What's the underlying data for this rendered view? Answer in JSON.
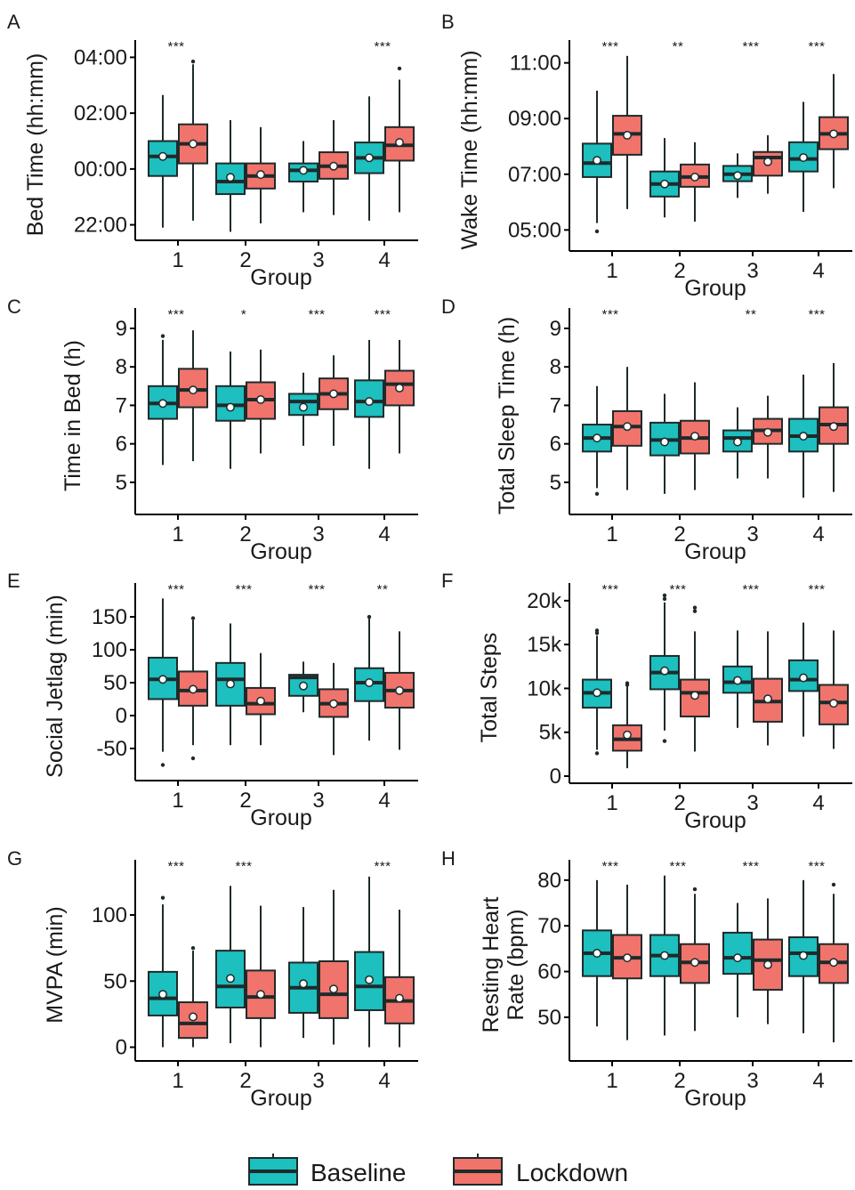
{
  "legend": {
    "items": [
      {
        "label": "Baseline",
        "color": "#1dbfbf"
      },
      {
        "label": "Lockdown",
        "color": "#f0746c"
      }
    ]
  },
  "colors": {
    "baseline": "#1dbfbf",
    "lockdown": "#f0746c",
    "median": "#1f2a2a"
  },
  "chart_data": [
    {
      "type": "box",
      "letter": "A",
      "xlabel": "Group",
      "ylabel": "Bed Time (hh:mm)",
      "categories": [
        "1",
        "2",
        "3",
        "4"
      ],
      "series_names": [
        "Baseline",
        "Lockdown"
      ],
      "ylim": [
        -2.3,
        4.3
      ],
      "yticks": [
        {
          "v": -2,
          "label": "22:00"
        },
        {
          "v": 0,
          "label": "00:00"
        },
        {
          "v": 2,
          "label": "02:00"
        },
        {
          "v": 4,
          "label": "04:00"
        }
      ],
      "significance": [
        "***",
        "",
        "",
        "***"
      ],
      "boxes": [
        [
          {
            "min": -2.1,
            "q1": -0.25,
            "med": 0.45,
            "q3": 1.0,
            "max": 2.65,
            "mean": 0.45,
            "out": []
          },
          {
            "min": -1.85,
            "q1": 0.2,
            "med": 0.9,
            "q3": 1.6,
            "max": 3.75,
            "mean": 0.9,
            "out": [
              3.85
            ]
          }
        ],
        [
          {
            "min": -2.25,
            "q1": -0.9,
            "med": -0.45,
            "q3": 0.2,
            "max": 1.75,
            "mean": -0.3,
            "out": []
          },
          {
            "min": -1.95,
            "q1": -0.7,
            "med": -0.25,
            "q3": 0.2,
            "max": 1.5,
            "mean": -0.2,
            "out": []
          }
        ],
        [
          {
            "min": -1.55,
            "q1": -0.45,
            "med": -0.05,
            "q3": 0.2,
            "max": 1.0,
            "mean": -0.05,
            "out": []
          },
          {
            "min": -1.65,
            "q1": -0.35,
            "med": 0.1,
            "q3": 0.6,
            "max": 1.75,
            "mean": 0.1,
            "out": []
          }
        ],
        [
          {
            "min": -1.85,
            "q1": -0.15,
            "med": 0.4,
            "q3": 0.95,
            "max": 2.6,
            "mean": 0.4,
            "out": []
          },
          {
            "min": -1.55,
            "q1": 0.3,
            "med": 0.85,
            "q3": 1.5,
            "max": 3.2,
            "mean": 0.95,
            "out": [
              3.6
            ]
          }
        ]
      ]
    },
    {
      "type": "box",
      "letter": "B",
      "xlabel": "Group",
      "ylabel": "Wake Time (hh:mm)",
      "categories": [
        "1",
        "2",
        "3",
        "4"
      ],
      "series_names": [
        "Baseline",
        "Lockdown"
      ],
      "ylim": [
        4.5,
        11.5
      ],
      "yticks": [
        {
          "v": 5,
          "label": "05:00"
        },
        {
          "v": 7,
          "label": "07:00"
        },
        {
          "v": 9,
          "label": "09:00"
        },
        {
          "v": 11,
          "label": "11:00"
        }
      ],
      "significance": [
        "***",
        "**",
        "***",
        "***"
      ],
      "boxes": [
        [
          {
            "min": 5.25,
            "q1": 6.9,
            "med": 7.4,
            "q3": 8.1,
            "max": 10.0,
            "mean": 7.5,
            "out": [
              4.95
            ]
          },
          {
            "min": 5.75,
            "q1": 7.7,
            "med": 8.45,
            "q3": 9.1,
            "max": 11.25,
            "mean": 8.4,
            "out": []
          }
        ],
        [
          {
            "min": 5.45,
            "q1": 6.2,
            "med": 6.65,
            "q3": 7.1,
            "max": 8.3,
            "mean": 6.65,
            "out": []
          },
          {
            "min": 5.3,
            "q1": 6.55,
            "med": 6.9,
            "q3": 7.35,
            "max": 8.15,
            "mean": 6.9,
            "out": []
          }
        ],
        [
          {
            "min": 6.15,
            "q1": 6.75,
            "med": 7.0,
            "q3": 7.3,
            "max": 7.75,
            "mean": 6.95,
            "out": []
          },
          {
            "min": 6.3,
            "q1": 6.95,
            "med": 7.6,
            "q3": 7.8,
            "max": 8.4,
            "mean": 7.45,
            "out": []
          }
        ],
        [
          {
            "min": 5.65,
            "q1": 7.1,
            "med": 7.55,
            "q3": 8.15,
            "max": 9.6,
            "mean": 7.6,
            "out": []
          },
          {
            "min": 6.5,
            "q1": 7.9,
            "med": 8.45,
            "q3": 9.05,
            "max": 10.6,
            "mean": 8.45,
            "out": []
          }
        ]
      ]
    },
    {
      "type": "box",
      "letter": "C",
      "xlabel": "Group",
      "ylabel": "Time in Bed (h)",
      "categories": [
        "1",
        "2",
        "3",
        "4"
      ],
      "series_names": [
        "Baseline",
        "Lockdown"
      ],
      "ylim": [
        4.35,
        9.3
      ],
      "yticks": [
        {
          "v": 5,
          "label": "5"
        },
        {
          "v": 6,
          "label": "6"
        },
        {
          "v": 7,
          "label": "7"
        },
        {
          "v": 8,
          "label": "8"
        },
        {
          "v": 9,
          "label": "9"
        }
      ],
      "significance": [
        "***",
        "*",
        "***",
        "***"
      ],
      "boxes": [
        [
          {
            "min": 5.45,
            "q1": 6.65,
            "med": 7.05,
            "q3": 7.5,
            "max": 8.7,
            "mean": 7.05,
            "out": [
              8.8
            ]
          },
          {
            "min": 5.55,
            "q1": 6.95,
            "med": 7.4,
            "q3": 7.95,
            "max": 8.95,
            "mean": 7.4,
            "out": []
          }
        ],
        [
          {
            "min": 5.35,
            "q1": 6.6,
            "med": 7.0,
            "q3": 7.5,
            "max": 8.4,
            "mean": 6.95,
            "out": []
          },
          {
            "min": 5.75,
            "q1": 6.65,
            "med": 7.15,
            "q3": 7.6,
            "max": 8.45,
            "mean": 7.15,
            "out": []
          }
        ],
        [
          {
            "min": 5.95,
            "q1": 6.75,
            "med": 7.1,
            "q3": 7.3,
            "max": 7.85,
            "mean": 6.95,
            "out": []
          },
          {
            "min": 5.95,
            "q1": 6.9,
            "med": 7.3,
            "q3": 7.7,
            "max": 8.3,
            "mean": 7.3,
            "out": []
          }
        ],
        [
          {
            "min": 5.35,
            "q1": 6.7,
            "med": 7.1,
            "q3": 7.65,
            "max": 8.7,
            "mean": 7.1,
            "out": []
          },
          {
            "min": 5.75,
            "q1": 7.0,
            "med": 7.55,
            "q3": 7.9,
            "max": 8.7,
            "mean": 7.45,
            "out": []
          }
        ]
      ]
    },
    {
      "type": "box",
      "letter": "D",
      "xlabel": "Group",
      "ylabel": "Total Sleep Time (h)",
      "categories": [
        "1",
        "2",
        "3",
        "4"
      ],
      "series_names": [
        "Baseline",
        "Lockdown"
      ],
      "ylim": [
        4.35,
        9.3
      ],
      "yticks": [
        {
          "v": 5,
          "label": "5"
        },
        {
          "v": 6,
          "label": "6"
        },
        {
          "v": 7,
          "label": "7"
        },
        {
          "v": 8,
          "label": "8"
        },
        {
          "v": 9,
          "label": "9"
        }
      ],
      "significance": [
        "***",
        "",
        "**",
        "***"
      ],
      "boxes": [
        [
          {
            "min": 4.85,
            "q1": 5.8,
            "med": 6.15,
            "q3": 6.5,
            "max": 7.5,
            "mean": 6.15,
            "out": [
              4.7
            ]
          },
          {
            "min": 4.8,
            "q1": 5.95,
            "med": 6.45,
            "q3": 6.85,
            "max": 8.0,
            "mean": 6.45,
            "out": []
          }
        ],
        [
          {
            "min": 4.7,
            "q1": 5.7,
            "med": 6.1,
            "q3": 6.55,
            "max": 7.3,
            "mean": 6.05,
            "out": []
          },
          {
            "min": 4.8,
            "q1": 5.75,
            "med": 6.15,
            "q3": 6.6,
            "max": 7.6,
            "mean": 6.2,
            "out": []
          }
        ],
        [
          {
            "min": 5.1,
            "q1": 5.8,
            "med": 6.15,
            "q3": 6.35,
            "max": 6.95,
            "mean": 6.05,
            "out": []
          },
          {
            "min": 5.1,
            "q1": 6.0,
            "med": 6.35,
            "q3": 6.65,
            "max": 7.25,
            "mean": 6.3,
            "out": []
          }
        ],
        [
          {
            "min": 4.6,
            "q1": 5.8,
            "med": 6.2,
            "q3": 6.65,
            "max": 7.8,
            "mean": 6.2,
            "out": []
          },
          {
            "min": 4.75,
            "q1": 6.0,
            "med": 6.5,
            "q3": 6.95,
            "max": 8.1,
            "mean": 6.45,
            "out": []
          }
        ]
      ]
    },
    {
      "type": "box",
      "letter": "E",
      "xlabel": "Group",
      "ylabel": "Social Jetlag (min)",
      "categories": [
        "1",
        "2",
        "3",
        "4"
      ],
      "series_names": [
        "Baseline",
        "Lockdown"
      ],
      "ylim": [
        -88,
        188
      ],
      "yticks": [
        {
          "v": -50,
          "label": "-50"
        },
        {
          "v": 0,
          "label": "0"
        },
        {
          "v": 50,
          "label": "50"
        },
        {
          "v": 100,
          "label": "100"
        },
        {
          "v": 150,
          "label": "150"
        }
      ],
      "significance": [
        "***",
        "***",
        "***",
        "**"
      ],
      "boxes": [
        [
          {
            "min": -55,
            "q1": 25,
            "med": 55,
            "q3": 88,
            "max": 178,
            "mean": 55,
            "out": [
              -75
            ]
          },
          {
            "min": -45,
            "q1": 15,
            "med": 38,
            "q3": 67,
            "max": 145,
            "mean": 40,
            "out": [
              148,
              -65
            ]
          }
        ],
        [
          {
            "min": -45,
            "q1": 15,
            "med": 55,
            "q3": 80,
            "max": 140,
            "mean": 48,
            "out": []
          },
          {
            "min": -45,
            "q1": 2,
            "med": 18,
            "q3": 42,
            "max": 95,
            "mean": 22,
            "out": []
          }
        ],
        [
          {
            "min": 5,
            "q1": 30,
            "med": 58,
            "q3": 62,
            "max": 82,
            "mean": 45,
            "out": []
          },
          {
            "min": -60,
            "q1": -2,
            "med": 18,
            "q3": 40,
            "max": 80,
            "mean": 18,
            "out": []
          }
        ],
        [
          {
            "min": -38,
            "q1": 22,
            "med": 50,
            "q3": 72,
            "max": 148,
            "mean": 50,
            "out": [
              150
            ]
          },
          {
            "min": -52,
            "q1": 12,
            "med": 38,
            "q3": 65,
            "max": 128,
            "mean": 38,
            "out": []
          }
        ]
      ]
    },
    {
      "type": "box",
      "letter": "F",
      "xlabel": "Group",
      "ylabel": "Total Steps",
      "categories": [
        "1",
        "2",
        "3",
        "4"
      ],
      "series_names": [
        "Baseline",
        "Lockdown"
      ],
      "ylim": [
        0,
        21000
      ],
      "yticks": [
        {
          "v": 0,
          "label": "0"
        },
        {
          "v": 5000,
          "label": "5k"
        },
        {
          "v": 10000,
          "label": "10k"
        },
        {
          "v": 15000,
          "label": "15k"
        },
        {
          "v": 20000,
          "label": "20k"
        }
      ],
      "significance": [
        "***",
        "***",
        "***",
        "***"
      ],
      "boxes": [
        [
          {
            "min": 3000,
            "q1": 7800,
            "med": 9500,
            "q3": 11000,
            "max": 16000,
            "mean": 9500,
            "out": [
              2600,
              16300,
              16600
            ]
          },
          {
            "min": 900,
            "q1": 2900,
            "med": 4200,
            "q3": 5800,
            "max": 10200,
            "mean": 4700,
            "out": [
              10400,
              10600
            ]
          }
        ],
        [
          {
            "min": 5200,
            "q1": 9900,
            "med": 11800,
            "q3": 13700,
            "max": 19800,
            "mean": 12000,
            "out": [
              4000,
              20200,
              20600
            ]
          },
          {
            "min": 2800,
            "q1": 6800,
            "med": 9500,
            "q3": 11000,
            "max": 16500,
            "mean": 9200,
            "out": [
              18800,
              19200
            ]
          }
        ],
        [
          {
            "min": 5500,
            "q1": 9500,
            "med": 10700,
            "q3": 12500,
            "max": 16600,
            "mean": 10900,
            "out": []
          },
          {
            "min": 3500,
            "q1": 6200,
            "med": 8500,
            "q3": 11100,
            "max": 16500,
            "mean": 8800,
            "out": []
          }
        ],
        [
          {
            "min": 4500,
            "q1": 9700,
            "med": 11000,
            "q3": 13200,
            "max": 17500,
            "mean": 11200,
            "out": []
          },
          {
            "min": 3100,
            "q1": 5900,
            "med": 8400,
            "q3": 10400,
            "max": 16600,
            "mean": 8300,
            "out": []
          }
        ]
      ]
    },
    {
      "type": "box",
      "letter": "G",
      "xlabel": "Group",
      "ylabel": "MVPA (min)",
      "categories": [
        "1",
        "2",
        "3",
        "4"
      ],
      "series_names": [
        "Baseline",
        "Lockdown"
      ],
      "ylim": [
        -5,
        135
      ],
      "yticks": [
        {
          "v": 0,
          "label": "0"
        },
        {
          "v": 50,
          "label": "50"
        },
        {
          "v": 100,
          "label": "100"
        }
      ],
      "significance": [
        "***",
        "***",
        "",
        "***"
      ],
      "boxes": [
        [
          {
            "min": 0,
            "q1": 24,
            "med": 37,
            "q3": 57,
            "max": 108,
            "mean": 40,
            "out": [
              113
            ]
          },
          {
            "min": 0,
            "q1": 7,
            "med": 18,
            "q3": 34,
            "max": 73,
            "mean": 23,
            "out": [
              75
            ]
          }
        ],
        [
          {
            "min": 3,
            "q1": 30,
            "med": 46,
            "q3": 73,
            "max": 122,
            "mean": 52,
            "out": []
          },
          {
            "min": 0,
            "q1": 22,
            "med": 38,
            "q3": 58,
            "max": 107,
            "mean": 40,
            "out": []
          }
        ],
        [
          {
            "min": 7,
            "q1": 26,
            "med": 45,
            "q3": 64,
            "max": 106,
            "mean": 48,
            "out": []
          },
          {
            "min": 2,
            "q1": 22,
            "med": 40,
            "q3": 65,
            "max": 119,
            "mean": 44,
            "out": []
          }
        ],
        [
          {
            "min": 0,
            "q1": 28,
            "med": 46,
            "q3": 72,
            "max": 129,
            "mean": 51,
            "out": []
          },
          {
            "min": 0,
            "q1": 18,
            "med": 35,
            "q3": 53,
            "max": 104,
            "mean": 37,
            "out": []
          }
        ]
      ]
    },
    {
      "type": "box",
      "letter": "H",
      "xlabel": "Group",
      "ylabel": [
        "Resting Heart",
        "Rate (bpm)"
      ],
      "categories": [
        "1",
        "2",
        "3",
        "4"
      ],
      "series_names": [
        "Baseline",
        "Lockdown"
      ],
      "ylim": [
        42,
        82.5
      ],
      "yticks": [
        {
          "v": 50,
          "label": "50"
        },
        {
          "v": 60,
          "label": "60"
        },
        {
          "v": 70,
          "label": "70"
        },
        {
          "v": 80,
          "label": "80"
        }
      ],
      "significance": [
        "***",
        "***",
        "***",
        "***"
      ],
      "boxes": [
        [
          {
            "min": 48,
            "q1": 59,
            "med": 64,
            "q3": 69,
            "max": 80,
            "mean": 64,
            "out": []
          },
          {
            "min": 45,
            "q1": 58.5,
            "med": 63,
            "q3": 68,
            "max": 79,
            "mean": 63,
            "out": []
          }
        ],
        [
          {
            "min": 46,
            "q1": 59,
            "med": 63.5,
            "q3": 68,
            "max": 81,
            "mean": 63.5,
            "out": []
          },
          {
            "min": 47,
            "q1": 57.5,
            "med": 62,
            "q3": 66,
            "max": 77,
            "mean": 62,
            "out": [
              78
            ]
          }
        ],
        [
          {
            "min": 50,
            "q1": 59.5,
            "med": 63,
            "q3": 68.5,
            "max": 75,
            "mean": 63,
            "out": []
          },
          {
            "min": 48.5,
            "q1": 56,
            "med": 62.5,
            "q3": 67,
            "max": 76,
            "mean": 61.5,
            "out": []
          }
        ],
        [
          {
            "min": 46.5,
            "q1": 59,
            "med": 64,
            "q3": 67.5,
            "max": 80,
            "mean": 63.5,
            "out": []
          },
          {
            "min": 44.5,
            "q1": 57.5,
            "med": 62,
            "q3": 66,
            "max": 77,
            "mean": 62,
            "out": [
              79
            ]
          }
        ]
      ]
    }
  ]
}
